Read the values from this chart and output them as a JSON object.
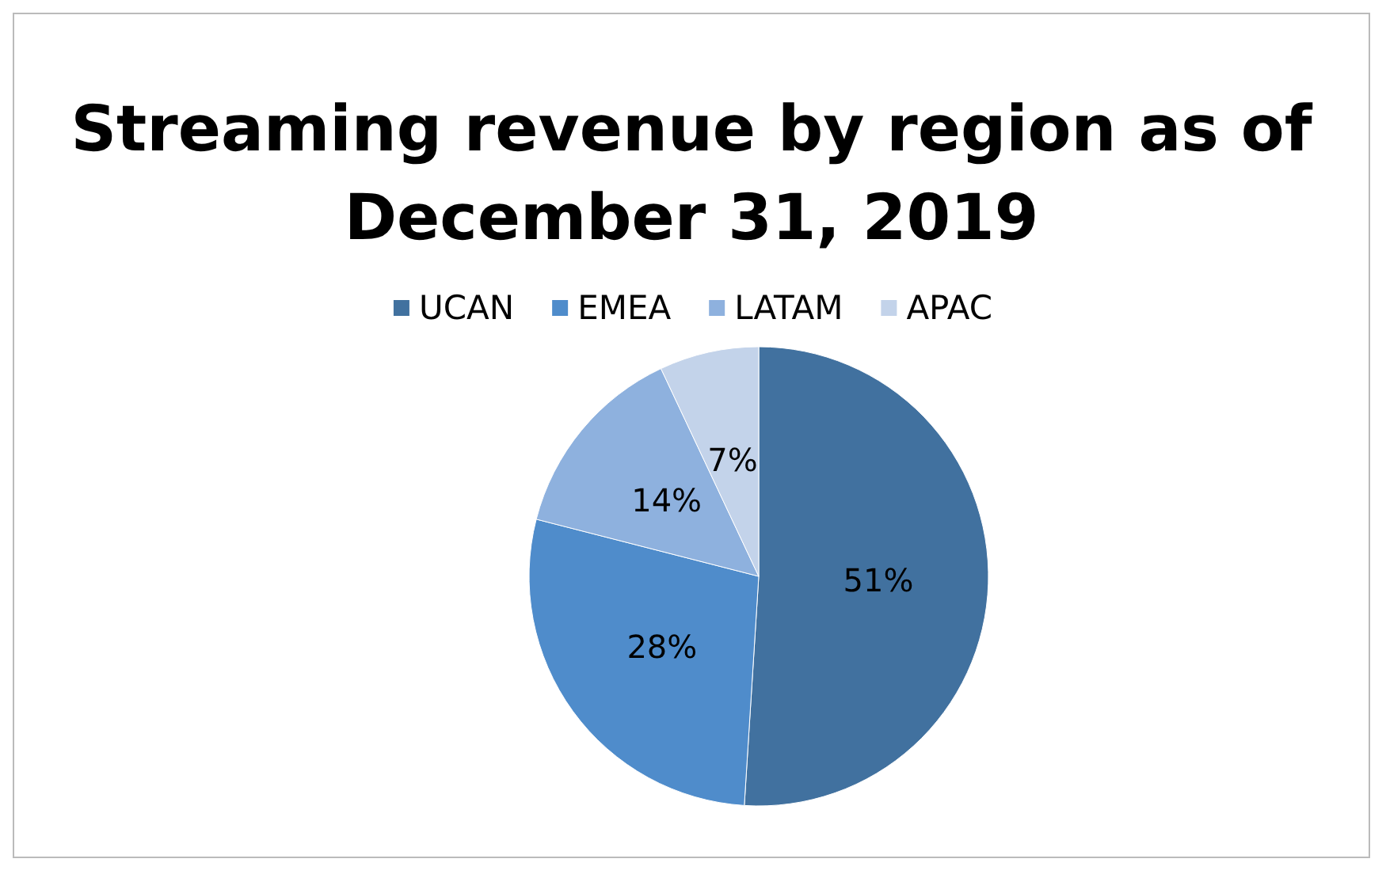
{
  "chart_data": {
    "type": "pie",
    "title": "Streaming revenue by region as of\nDecember 31, 2019",
    "categories": [
      "UCAN",
      "EMEA",
      "LATAM",
      "APAC"
    ],
    "values": [
      51,
      28,
      14,
      7
    ],
    "colors": [
      "#41719f",
      "#4f8ccb",
      "#8eb1de",
      "#c3d3ea"
    ],
    "value_labels": [
      "51%",
      "28%",
      "14%",
      "7%"
    ],
    "legend": "top"
  }
}
